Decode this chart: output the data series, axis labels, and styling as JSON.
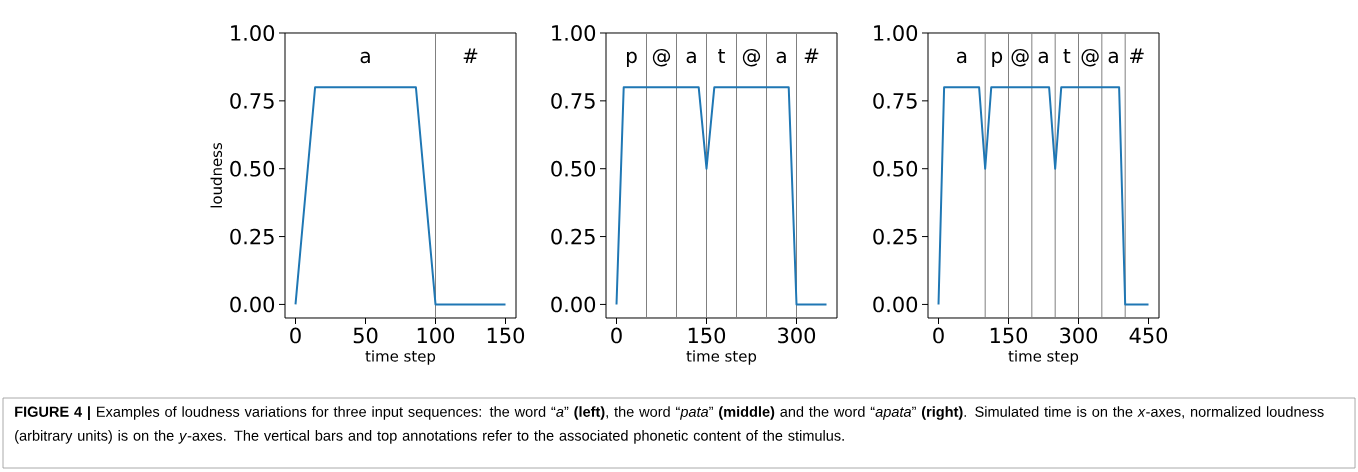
{
  "chart_data": [
    {
      "type": "line",
      "xlabel": "time step",
      "ylabel": "loudness",
      "color": "#1f77b4",
      "x": [
        0,
        14,
        86,
        100,
        150
      ],
      "values": [
        0,
        0.8,
        0.8,
        0,
        0
      ],
      "xlim": [
        -7.5,
        157.5
      ],
      "ylim": [
        -0.05,
        1.0
      ],
      "xticks": [
        0,
        50,
        100,
        150
      ],
      "yticks": [
        {
          "value": 0,
          "label": "0.00"
        },
        {
          "value": 0.25,
          "label": "0.25"
        },
        {
          "value": 0.5,
          "label": "0.50"
        },
        {
          "value": 0.75,
          "label": "0.75"
        },
        {
          "value": 1.0,
          "label": "1.00"
        }
      ],
      "ref_lines": [
        {
          "axis": "x",
          "value": 100,
          "color": "#808080"
        }
      ],
      "annotations": [
        "a",
        "#",
        "**FIGURE 4 |** Examples of loudness variations for three input sequences: the word “*a*” **(left)**, the word “*pata*” **(middle)** and the word “*apata*” **(right)**. Simulated time is on the *x*-axes, normalized loudness (arbitrary units) is on the *y*-axes. The vertical bars and top annotations refer to the associated phonetic content of the stimulus."
      ]
    },
    {
      "type": "line",
      "xlabel": "time step",
      "color": "#1f77b4",
      "x": [
        0,
        12,
        137,
        150,
        163,
        287,
        300,
        350
      ],
      "values": [
        0,
        0.8,
        0.8,
        0.5,
        0.8,
        0.8,
        0,
        0
      ],
      "xlim": [
        -17.5,
        367.5
      ],
      "ylim": [
        -0.05,
        1.0
      ],
      "xticks": [
        0,
        150,
        300
      ],
      "yticks": [
        {
          "value": 0,
          "label": "0.00"
        },
        {
          "value": 0.25,
          "label": "0.25"
        },
        {
          "value": 0.5,
          "label": "0.50"
        },
        {
          "value": 0.75,
          "label": "0.75"
        },
        {
          "value": 1.0,
          "label": "1.00"
        }
      ],
      "ref_lines": [
        {
          "axis": "x",
          "value": 50,
          "color": "#808080"
        },
        {
          "axis": "x",
          "value": 100,
          "color": "#808080"
        },
        {
          "axis": "x",
          "value": 150,
          "color": "#808080"
        },
        {
          "axis": "x",
          "value": 200,
          "color": "#808080"
        },
        {
          "axis": "x",
          "value": 250,
          "color": "#808080"
        },
        {
          "axis": "x",
          "value": 300,
          "color": "#808080"
        }
      ],
      "annotations": [
        "p",
        "@",
        "a",
        "t",
        "@",
        "a",
        "#"
      ]
    },
    {
      "type": "line",
      "xlabel": "time step",
      "color": "#1f77b4",
      "x": [
        0,
        12,
        87,
        100,
        113,
        237,
        250,
        263,
        387,
        400,
        450
      ],
      "values": [
        0,
        0.8,
        0.8,
        0.5,
        0.8,
        0.8,
        0.5,
        0.8,
        0.8,
        0,
        0
      ],
      "xlim": [
        -22.5,
        472.5
      ],
      "ylim": [
        -0.05,
        1.0
      ],
      "xticks": [
        0,
        150,
        300,
        450
      ],
      "yticks": [
        {
          "value": 0,
          "label": "0.00"
        },
        {
          "value": 0.25,
          "label": "0.25"
        },
        {
          "value": 0.5,
          "label": "0.50"
        },
        {
          "value": 0.75,
          "label": "0.75"
        },
        {
          "value": 1.0,
          "label": "1.00"
        }
      ],
      "ref_lines": [
        {
          "axis": "x",
          "value": 100,
          "color": "#808080"
        },
        {
          "axis": "x",
          "value": 150,
          "color": "#808080"
        },
        {
          "axis": "x",
          "value": 200,
          "color": "#808080"
        },
        {
          "axis": "x",
          "value": 250,
          "color": "#808080"
        },
        {
          "axis": "x",
          "value": 300,
          "color": "#808080"
        },
        {
          "axis": "x",
          "value": 350,
          "color": "#808080"
        },
        {
          "axis": "x",
          "value": 400,
          "color": "#808080"
        }
      ],
      "annotations": [
        "a",
        "p",
        "@",
        "a",
        "t",
        "@",
        "a",
        "#"
      ]
    }
  ]
}
